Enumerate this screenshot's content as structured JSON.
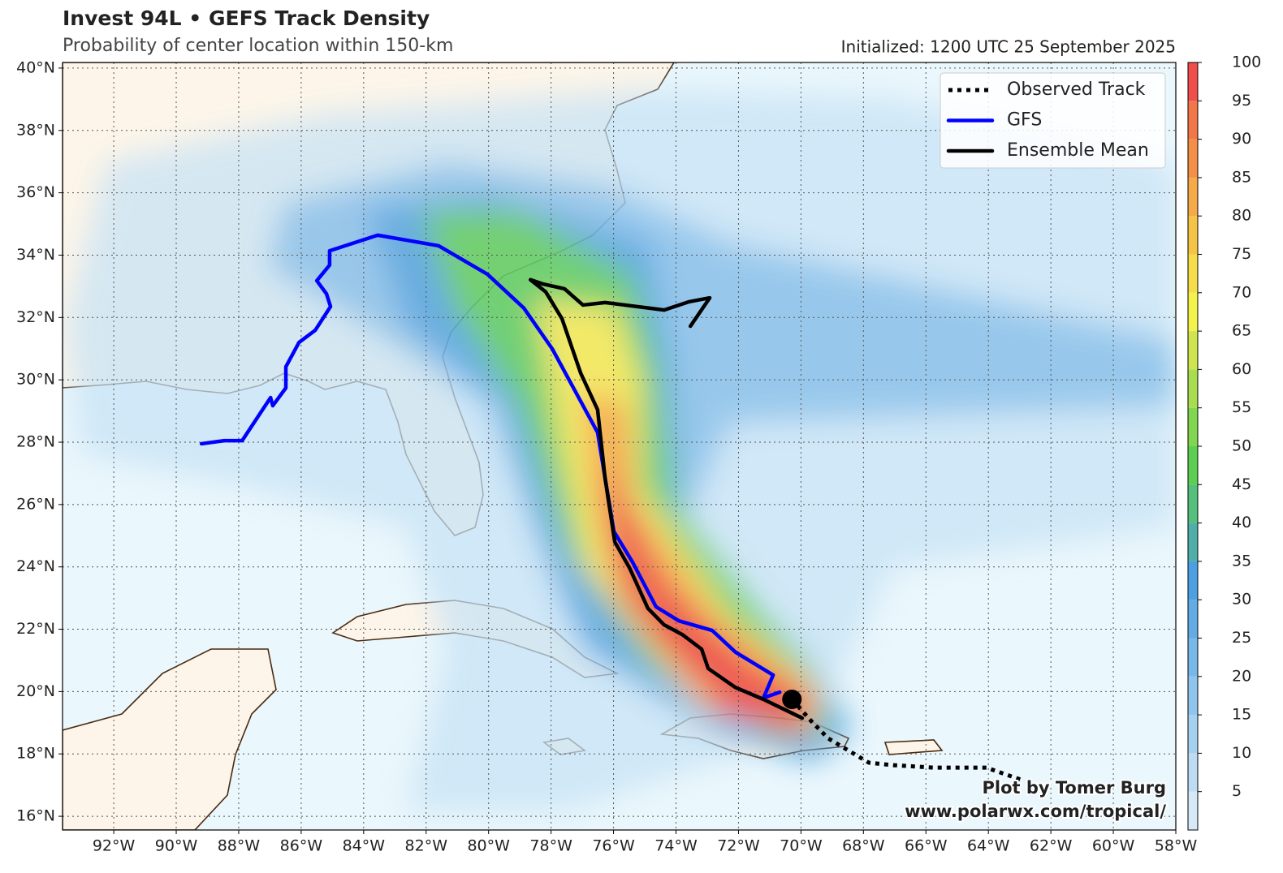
{
  "header": {
    "title": "Invest 94L • GEFS Track Density",
    "subtitle": "Probability of center location within 150-km",
    "initialized": "Initialized: 1200 UTC 25 September 2025"
  },
  "map": {
    "lon_range": [
      -93.64,
      -58
    ],
    "lat_range": [
      15.56,
      40.18
    ],
    "grid": true,
    "lon_ticks": [
      {
        "value": -92,
        "label": "92°W"
      },
      {
        "value": -90,
        "label": "90°W"
      },
      {
        "value": -88,
        "label": "88°W"
      },
      {
        "value": -86,
        "label": "86°W"
      },
      {
        "value": -84,
        "label": "84°W"
      },
      {
        "value": -82,
        "label": "82°W"
      },
      {
        "value": -80,
        "label": "80°W"
      },
      {
        "value": -78,
        "label": "78°W"
      },
      {
        "value": -76,
        "label": "76°W"
      },
      {
        "value": -74,
        "label": "74°W"
      },
      {
        "value": -72,
        "label": "72°W"
      },
      {
        "value": -70,
        "label": "70°W"
      },
      {
        "value": -68,
        "label": "68°W"
      },
      {
        "value": -66,
        "label": "66°W"
      },
      {
        "value": -64,
        "label": "64°W"
      },
      {
        "value": -62,
        "label": "62°W"
      },
      {
        "value": -60,
        "label": "60°W"
      },
      {
        "value": -58,
        "label": "58°W"
      }
    ],
    "lat_ticks": [
      {
        "value": 16,
        "label": "16°N"
      },
      {
        "value": 18,
        "label": "18°N"
      },
      {
        "value": 20,
        "label": "20°N"
      },
      {
        "value": 22,
        "label": "22°N"
      },
      {
        "value": 24,
        "label": "24°N"
      },
      {
        "value": 26,
        "label": "26°N"
      },
      {
        "value": 28,
        "label": "28°N"
      },
      {
        "value": 30,
        "label": "30°N"
      },
      {
        "value": 32,
        "label": "32°N"
      },
      {
        "value": 34,
        "label": "34°N"
      },
      {
        "value": 36,
        "label": "36°N"
      },
      {
        "value": 38,
        "label": "38°N"
      },
      {
        "value": 40,
        "label": "40°N"
      }
    ]
  },
  "tracks": [
    {
      "name": "Observed Track",
      "color": "#000000",
      "style": "dotted",
      "lon": [
        -70.29,
        -69.64,
        -69.13,
        -68.48,
        -67.83,
        -67.05,
        -65.75,
        -64.06,
        -63.41,
        -62.89
      ],
      "lat": [
        19.75,
        19.02,
        18.5,
        18.11,
        17.72,
        17.64,
        17.56,
        17.56,
        17.33,
        17.15
      ]
    },
    {
      "name": "GFS",
      "color": "#0000ff",
      "style": "solid",
      "lon": [
        -89.19,
        -88.46,
        -87.89,
        -86.98,
        -86.91,
        -86.49,
        -86.49,
        -86.07,
        -85.55,
        -85.06,
        -85.19,
        -85.5,
        -85.09,
        -85.09,
        -83.55,
        -81.6,
        -80.04,
        -78.87,
        -77.96,
        -76.51,
        -75.99,
        -75.39,
        -74.64,
        -73.91,
        -72.84,
        -72.09,
        -70.89,
        -71.2,
        -70.68
      ],
      "lat": [
        27.95,
        28.05,
        28.05,
        29.43,
        29.17,
        29.74,
        30.42,
        31.2,
        31.59,
        32.35,
        32.76,
        33.18,
        33.68,
        34.14,
        34.64,
        34.3,
        33.39,
        32.3,
        30.99,
        28.31,
        25.14,
        24.15,
        22.72,
        22.27,
        21.96,
        21.26,
        20.53,
        19.8,
        19.98
      ]
    },
    {
      "name": "Ensemble Mean",
      "color": "#000000",
      "style": "solid",
      "lon": [
        -69.96,
        -71.2,
        -72.11,
        -72.97,
        -73.18,
        -73.8,
        -74.38,
        -74.9,
        -75.49,
        -75.96,
        -76.27,
        -76.51,
        -77.05,
        -77.65,
        -78.17,
        -78.66,
        -78.28,
        -77.57,
        -76.98,
        -76.27,
        -74.38,
        -73.6,
        -72.92,
        -73.54
      ],
      "lat": [
        19.15,
        19.75,
        20.14,
        20.74,
        21.36,
        21.83,
        22.14,
        22.67,
        23.97,
        24.8,
        26.83,
        29.04,
        30.21,
        31.96,
        32.82,
        33.21,
        33.08,
        32.92,
        32.4,
        32.48,
        32.24,
        32.5,
        32.63,
        31.72
      ]
    }
  ],
  "colorbar": {
    "range": [
      0,
      100
    ],
    "ticks": [
      5,
      10,
      15,
      20,
      25,
      30,
      35,
      40,
      45,
      50,
      55,
      60,
      65,
      70,
      75,
      80,
      85,
      90,
      95,
      100
    ],
    "colors": [
      "#d6e9f8",
      "#bddcf4",
      "#a6d0f0",
      "#8fc4ec",
      "#78b8e8",
      "#62abe4",
      "#4c9fe0",
      "#4fafa8",
      "#55c07c",
      "#5ccf52",
      "#80d64f",
      "#a8dd4f",
      "#cfe44e",
      "#f2f24b",
      "#f5dd4a",
      "#f5c447",
      "#f5a947",
      "#f48f48",
      "#f27648",
      "#ef4e4a"
    ]
  },
  "credits": [
    "Plot by Tomer Burg",
    "www.polarwx.com/tropical/"
  ]
}
